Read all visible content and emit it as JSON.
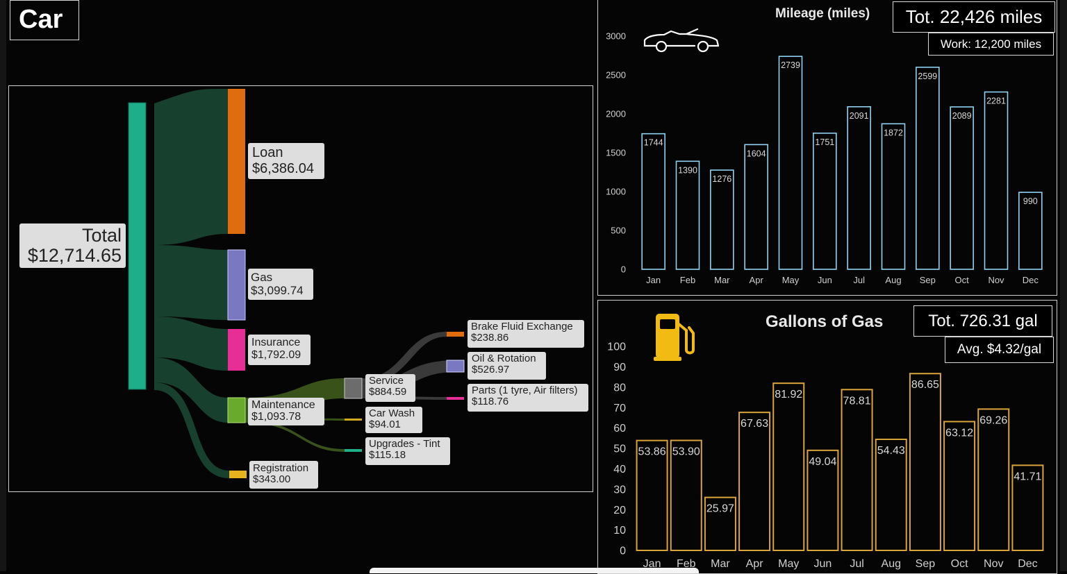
{
  "page_title": "Car",
  "sankey": {
    "labels": {
      "total": {
        "name": "Total",
        "value": "$12,714.65"
      },
      "loan": {
        "name": "Loan",
        "value": "$6,386.04"
      },
      "gas": {
        "name": "Gas",
        "value": "$3,099.74"
      },
      "insurance": {
        "name": "Insurance",
        "value": "$1,792.09"
      },
      "maintenance": {
        "name": "Maintenance",
        "value": "$1,093.78"
      },
      "registration": {
        "name": "Registration",
        "value": "$343.00"
      },
      "service": {
        "name": "Service",
        "value": "$884.59"
      },
      "carwash": {
        "name": "Car Wash",
        "value": "$94.01"
      },
      "upgrades": {
        "name": "Upgrades - Tint",
        "value": "$115.18"
      },
      "brake": {
        "name": "Brake Fluid Exchange",
        "value": "$238.86"
      },
      "oil": {
        "name": "Oil & Rotation",
        "value": "$526.97"
      },
      "parts": {
        "name": "Parts (1 tyre, Air filters)",
        "value": "$118.76"
      }
    },
    "colors": {
      "total": "#1fae8a",
      "loan": "#e06c10",
      "gas": "#7a78c0",
      "insurance": "#e62e96",
      "maintenance": "#6aaa2a",
      "registration": "#e6b21e",
      "service": "#6c6c6c",
      "carwash": "#d4aa20",
      "upgrades": "#1fae8a",
      "brake": "#e06c10",
      "oil": "#7a78c0",
      "parts": "#e62e96",
      "link_total": "#17402e",
      "link_maint": "#39521a",
      "link_service": "#3a3a3a"
    }
  },
  "chart_data": [
    {
      "type": "bar",
      "title": "Mileage (miles)",
      "categories": [
        "Jan",
        "Feb",
        "Mar",
        "Apr",
        "May",
        "Jun",
        "Jul",
        "Aug",
        "Sep",
        "Oct",
        "Nov",
        "Dec"
      ],
      "values": [
        1744,
        1390,
        1276,
        1604,
        2739,
        1751,
        2091,
        1872,
        2599,
        2089,
        2281,
        990
      ],
      "yticks": [
        0,
        500,
        1000,
        1500,
        2000,
        2500,
        3000
      ],
      "ylim": [
        0,
        3000
      ],
      "grid": false,
      "color": "#8fd3f2",
      "total_label": "Tot. 22,426 miles",
      "sub_label": "Work: 12,200 miles",
      "icon": "car-icon"
    },
    {
      "type": "bar",
      "title": "Gallons of Gas",
      "categories": [
        "Jan",
        "Feb",
        "Mar",
        "Apr",
        "May",
        "Jun",
        "Jul",
        "Aug",
        "Sep",
        "Oct",
        "Nov",
        "Dec"
      ],
      "values": [
        53.86,
        53.9,
        25.97,
        67.63,
        81.92,
        49.04,
        78.81,
        54.43,
        86.65,
        63.12,
        69.26,
        41.71
      ],
      "value_labels": [
        "53.86",
        "53.90",
        "25.97",
        "67.63",
        "81.92",
        "49.04",
        "78.81",
        "54.43",
        "86.65",
        "63.12",
        "69.26",
        "41.71"
      ],
      "yticks": [
        0,
        10,
        20,
        30,
        40,
        50,
        60,
        70,
        80,
        90,
        100
      ],
      "ylim": [
        0,
        100
      ],
      "grid": false,
      "color": "#d9a53a",
      "total_label": "Tot. 726.31 gal",
      "sub_label": "Avg. $4.32/gal",
      "icon": "fuel-pump-icon"
    }
  ]
}
